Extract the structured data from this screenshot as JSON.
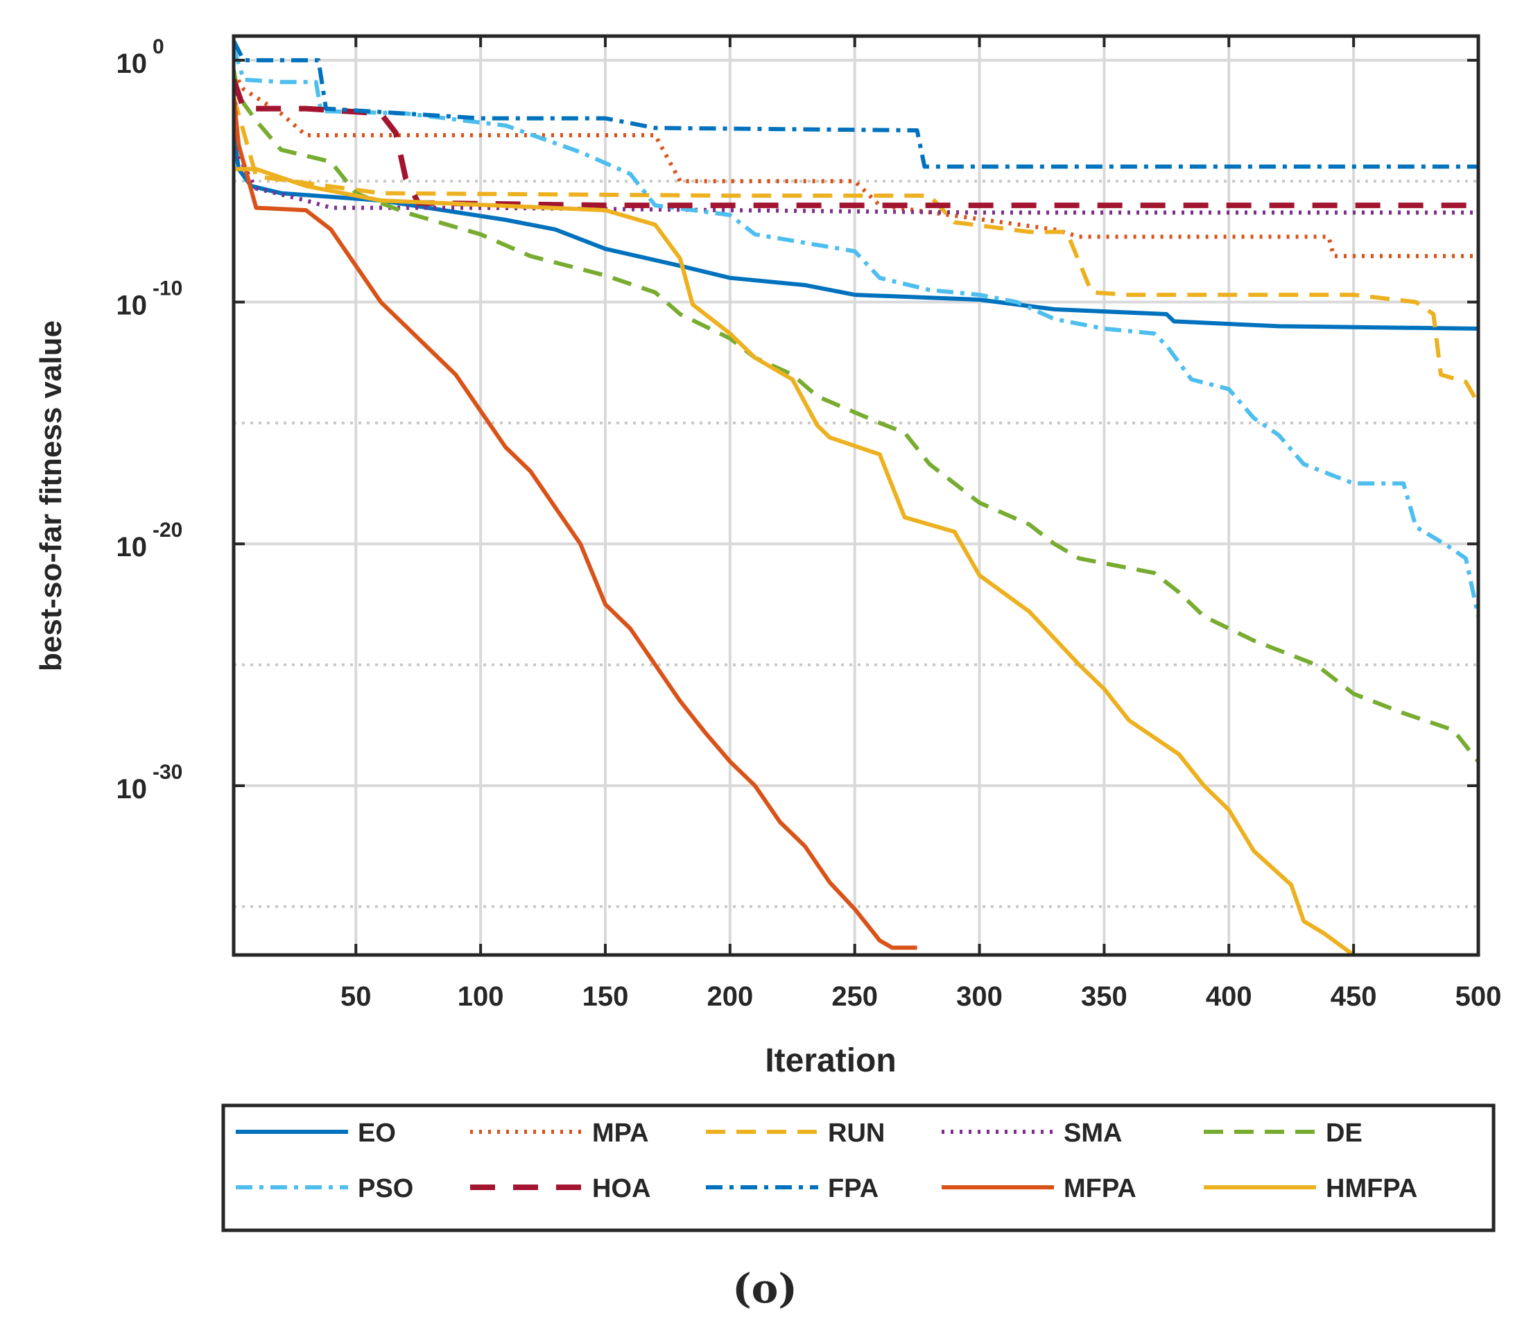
{
  "chart_data": {
    "type": "line",
    "title": "",
    "caption": "(o)",
    "xlabel": "Iteration",
    "ylabel": "best-so-far fitness value",
    "xlim": [
      1,
      500
    ],
    "ylim_log10": [
      -37,
      1
    ],
    "yscale": "log",
    "grid": true,
    "xticks": [
      50,
      100,
      150,
      200,
      250,
      300,
      350,
      400,
      450,
      500
    ],
    "xtick_labels": [
      "50",
      "100",
      "150",
      "200",
      "250",
      "300",
      "350",
      "400",
      "450",
      "500"
    ],
    "yticks_log10": [
      0,
      -10,
      -20,
      -30
    ],
    "ytick_base": "10",
    "ytick_exponents": [
      "0",
      "-10",
      "-20",
      "-30"
    ],
    "minor_grid_log10": [
      -5,
      -15,
      -25,
      -35
    ],
    "legend_position": "bottom",
    "series": [
      {
        "name": "EO",
        "color": "#0072BD",
        "style": "solid",
        "points": [
          [
            1,
            -3
          ],
          [
            3,
            -4.5
          ],
          [
            8,
            -5.2
          ],
          [
            20,
            -5.5
          ],
          [
            60,
            -5.8
          ],
          [
            110,
            -6.6
          ],
          [
            130,
            -7
          ],
          [
            150,
            -7.8
          ],
          [
            180,
            -8.5
          ],
          [
            200,
            -9
          ],
          [
            230,
            -9.3
          ],
          [
            250,
            -9.7
          ],
          [
            300,
            -9.9
          ],
          [
            330,
            -10.3
          ],
          [
            375,
            -10.5
          ],
          [
            378,
            -10.8
          ],
          [
            420,
            -11
          ],
          [
            500,
            -11.1
          ]
        ]
      },
      {
        "name": "MPA",
        "color": "#D95319",
        "style": "dotted",
        "points": [
          [
            1,
            -0.5
          ],
          [
            5,
            -1.2
          ],
          [
            20,
            -2.2
          ],
          [
            30,
            -3.1
          ],
          [
            80,
            -3.1
          ],
          [
            170,
            -3.1
          ],
          [
            180,
            -5
          ],
          [
            250,
            -5
          ],
          [
            260,
            -6
          ],
          [
            330,
            -7
          ],
          [
            340,
            -7.3
          ],
          [
            440,
            -7.3
          ],
          [
            442,
            -8.1
          ],
          [
            500,
            -8.1
          ]
        ]
      },
      {
        "name": "RUN",
        "color": "#EDB120",
        "style": "dashed",
        "points": [
          [
            1,
            -1.5
          ],
          [
            10,
            -4.8
          ],
          [
            60,
            -5.5
          ],
          [
            200,
            -5.6
          ],
          [
            280,
            -5.6
          ],
          [
            290,
            -6.7
          ],
          [
            320,
            -7.1
          ],
          [
            335,
            -7.1
          ],
          [
            345,
            -9.6
          ],
          [
            360,
            -9.7
          ],
          [
            450,
            -9.7
          ],
          [
            475,
            -10
          ],
          [
            482,
            -10.5
          ],
          [
            485,
            -13
          ],
          [
            495,
            -13.3
          ],
          [
            500,
            -14.2
          ]
        ]
      },
      {
        "name": "SMA",
        "color": "#7E2F8E",
        "style": "dotted",
        "points": [
          [
            1,
            -1
          ],
          [
            3,
            -4
          ],
          [
            10,
            -5.3
          ],
          [
            30,
            -5.8
          ],
          [
            40,
            -6.1
          ],
          [
            100,
            -6.1
          ],
          [
            200,
            -6.2
          ],
          [
            300,
            -6.3
          ],
          [
            500,
            -6.3
          ]
        ]
      },
      {
        "name": "DE",
        "color": "#77AC30",
        "style": "dashed",
        "points": [
          [
            1,
            -0.4
          ],
          [
            3,
            -1.5
          ],
          [
            10,
            -2.5
          ],
          [
            20,
            -3.7
          ],
          [
            40,
            -4.2
          ],
          [
            50,
            -5.5
          ],
          [
            70,
            -6.3
          ],
          [
            100,
            -7.2
          ],
          [
            120,
            -8.1
          ],
          [
            150,
            -8.9
          ],
          [
            170,
            -9.6
          ],
          [
            180,
            -10.5
          ],
          [
            200,
            -11.5
          ],
          [
            210,
            -12.3
          ],
          [
            225,
            -13
          ],
          [
            235,
            -13.9
          ],
          [
            260,
            -15
          ],
          [
            270,
            -15.4
          ],
          [
            280,
            -16.7
          ],
          [
            300,
            -18.3
          ],
          [
            320,
            -19.2
          ],
          [
            330,
            -20
          ],
          [
            340,
            -20.6
          ],
          [
            370,
            -21.2
          ],
          [
            380,
            -22
          ],
          [
            390,
            -23
          ],
          [
            410,
            -24
          ],
          [
            435,
            -25
          ],
          [
            450,
            -26.2
          ],
          [
            470,
            -27
          ],
          [
            490,
            -27.7
          ],
          [
            500,
            -29
          ]
        ]
      },
      {
        "name": "PSO",
        "color": "#4DBEEE",
        "style": "dashdot",
        "points": [
          [
            1,
            0.5
          ],
          [
            5,
            -0.8
          ],
          [
            20,
            -0.9
          ],
          [
            34,
            -0.9
          ],
          [
            36,
            -2.1
          ],
          [
            70,
            -2.2
          ],
          [
            110,
            -2.7
          ],
          [
            140,
            -3.8
          ],
          [
            160,
            -4.7
          ],
          [
            170,
            -6
          ],
          [
            200,
            -6.4
          ],
          [
            210,
            -7.2
          ],
          [
            250,
            -7.9
          ],
          [
            260,
            -9
          ],
          [
            280,
            -9.5
          ],
          [
            300,
            -9.7
          ],
          [
            315,
            -10
          ],
          [
            330,
            -10.7
          ],
          [
            350,
            -11.1
          ],
          [
            370,
            -11.3
          ],
          [
            375,
            -11.8
          ],
          [
            385,
            -13.2
          ],
          [
            400,
            -13.6
          ],
          [
            410,
            -14.8
          ],
          [
            420,
            -15.5
          ],
          [
            430,
            -16.7
          ],
          [
            450,
            -17.5
          ],
          [
            470,
            -17.5
          ],
          [
            475,
            -19.3
          ],
          [
            488,
            -20.1
          ],
          [
            495,
            -20.6
          ],
          [
            500,
            -23
          ]
        ]
      },
      {
        "name": "HOA",
        "color": "#A2142F",
        "style": "dashed",
        "points": [
          [
            1,
            -0.8
          ],
          [
            5,
            -2
          ],
          [
            30,
            -2
          ],
          [
            60,
            -2.2
          ],
          [
            66,
            -3
          ],
          [
            70,
            -4.9
          ],
          [
            75,
            -5.9
          ],
          [
            150,
            -6
          ],
          [
            300,
            -6
          ],
          [
            500,
            -6
          ]
        ]
      },
      {
        "name": "FPA",
        "color": "#0072BD",
        "style": "dashdot",
        "points": [
          [
            1,
            0.8
          ],
          [
            5,
            0
          ],
          [
            35,
            0
          ],
          [
            38,
            -2
          ],
          [
            100,
            -2.4
          ],
          [
            150,
            -2.4
          ],
          [
            170,
            -2.8
          ],
          [
            275,
            -2.9
          ],
          [
            278,
            -4.4
          ],
          [
            300,
            -4.4
          ],
          [
            500,
            -4.4
          ]
        ]
      },
      {
        "name": "MFPA",
        "color": "#D95319",
        "style": "solid",
        "points": [
          [
            1,
            -1.5
          ],
          [
            3,
            -3.5
          ],
          [
            10,
            -6.1
          ],
          [
            30,
            -6.2
          ],
          [
            40,
            -7
          ],
          [
            50,
            -8.5
          ],
          [
            60,
            -10
          ],
          [
            70,
            -11
          ],
          [
            80,
            -12
          ],
          [
            90,
            -13
          ],
          [
            100,
            -14.5
          ],
          [
            110,
            -16
          ],
          [
            120,
            -17
          ],
          [
            130,
            -18.5
          ],
          [
            140,
            -20
          ],
          [
            150,
            -22.5
          ],
          [
            160,
            -23.5
          ],
          [
            170,
            -25
          ],
          [
            180,
            -26.5
          ],
          [
            190,
            -27.8
          ],
          [
            200,
            -29
          ],
          [
            210,
            -30
          ],
          [
            220,
            -31.5
          ],
          [
            230,
            -32.5
          ],
          [
            240,
            -34
          ],
          [
            250,
            -35.1
          ],
          [
            260,
            -36.4
          ],
          [
            265,
            -36.7
          ],
          [
            275,
            -36.7
          ]
        ]
      },
      {
        "name": "HMFPA",
        "color": "#EDB120",
        "style": "solid",
        "points": [
          [
            1,
            -4.5
          ],
          [
            10,
            -4.5
          ],
          [
            30,
            -5.2
          ],
          [
            60,
            -5.8
          ],
          [
            150,
            -6.2
          ],
          [
            170,
            -6.8
          ],
          [
            180,
            -8.2
          ],
          [
            185,
            -10.1
          ],
          [
            200,
            -11.3
          ],
          [
            210,
            -12.3
          ],
          [
            225,
            -13.2
          ],
          [
            235,
            -15.1
          ],
          [
            240,
            -15.6
          ],
          [
            260,
            -16.3
          ],
          [
            270,
            -18.9
          ],
          [
            290,
            -19.5
          ],
          [
            300,
            -21.3
          ],
          [
            320,
            -22.8
          ],
          [
            340,
            -25
          ],
          [
            350,
            -26
          ],
          [
            360,
            -27.3
          ],
          [
            380,
            -28.7
          ],
          [
            390,
            -30
          ],
          [
            400,
            -31
          ],
          [
            410,
            -32.7
          ],
          [
            425,
            -34.1
          ],
          [
            430,
            -35.6
          ],
          [
            438,
            -36.1
          ],
          [
            450,
            -37
          ]
        ]
      }
    ]
  }
}
